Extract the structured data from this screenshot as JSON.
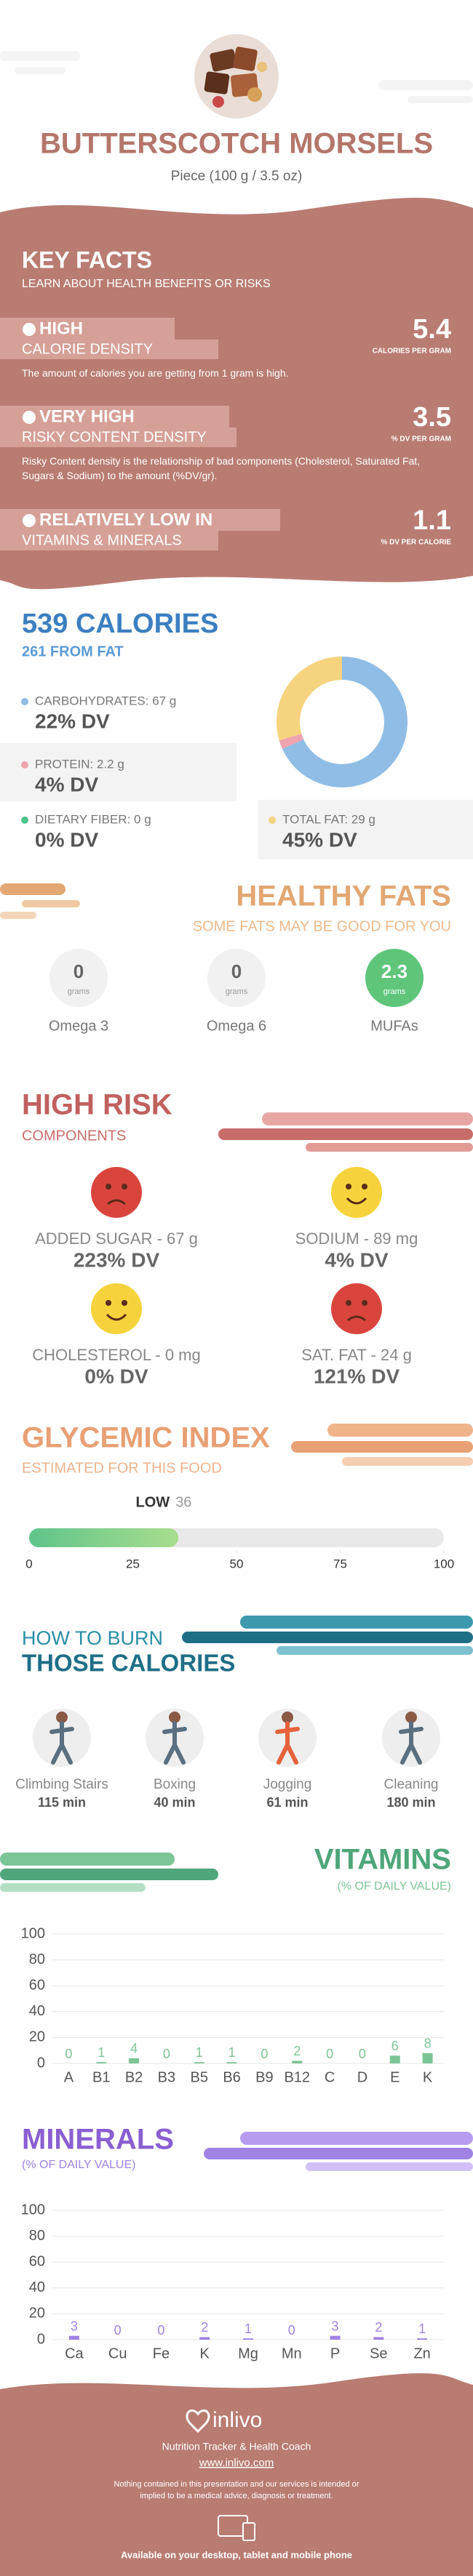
{
  "header": {
    "title": "BUTTERSCOTCH MORSELS",
    "subtitle": "Piece (100 g / 3.5 oz)"
  },
  "key_facts": {
    "title": "KEY FACTS",
    "subtitle": "LEARN ABOUT HEALTH BENEFITS OR RISKS",
    "items": [
      {
        "level": "HIGH",
        "name": "CALORIE DENSITY",
        "value": 5.4,
        "unit": "CALORIES PER GRAM",
        "description": "The amount of calories you are getting from 1 gram is high."
      },
      {
        "level": "VERY HIGH",
        "name": "RISKY CONTENT DENSITY",
        "value": 3.5,
        "unit": "% DV PER GRAM",
        "description": "Risky Content density is the relationship of bad components (Cholesterol, Saturated Fat, Sugars & Sodium) to the amount (%DV/gr)."
      },
      {
        "level": "RELATIVELY LOW  IN",
        "name": "VITAMINS & MINERALS",
        "value": 1.1,
        "unit": "% DV PER CALORIE"
      }
    ]
  },
  "calories": {
    "title": "539 CALORIES",
    "subtitle": "261 FROM FAT",
    "nutrients": [
      {
        "label": "CARBOHYDRATES: 67 g",
        "dv": "22% DV",
        "grams": 67,
        "color": "#8fbde6"
      },
      {
        "label": "PROTEIN: 2.2 g",
        "dv": "4% DV",
        "grams": 2.2,
        "color": "#f0a3b0"
      },
      {
        "label": "DIETARY FIBER: 0 g",
        "dv": "0% DV",
        "grams": 0,
        "color": "#4cc28d"
      },
      {
        "label": "TOTAL FAT: 29 g",
        "dv": "45% DV",
        "grams": 29,
        "color": "#f6d37e"
      }
    ]
  },
  "healthy_fats": {
    "title": "HEALTHY FATS",
    "subtitle": "SOME FATS MAY BE GOOD FOR YOU",
    "items": [
      {
        "name": "Omega 3",
        "value": "0",
        "unit": "grams"
      },
      {
        "name": "Omega 6",
        "value": "0",
        "unit": "grams"
      },
      {
        "name": "MUFAs",
        "value": "2.3",
        "unit": "grams"
      }
    ]
  },
  "high_risk": {
    "title": "HIGH RISK",
    "subtitle": "COMPONENTS",
    "items": [
      {
        "label": "ADDED SUGAR - 67 g",
        "dv": "223% DV",
        "face_color": "#d9453d"
      },
      {
        "label": "SODIUM - 89 mg",
        "dv": "4% DV",
        "face_color": "#f6d33c"
      },
      {
        "label": "CHOLESTEROL - 0 mg",
        "dv": "0% DV",
        "face_color": "#f6d33c"
      },
      {
        "label": "SAT. FAT - 24 g",
        "dv": "121% DV",
        "face_color": "#d9453d"
      }
    ]
  },
  "glycemic_index": {
    "title": "GLYCEMIC INDEX",
    "subtitle": "ESTIMATED FOR THIS FOOD",
    "level": "LOW",
    "value": 36,
    "xlim": [
      0,
      100
    ],
    "xticks": [
      0,
      25,
      50,
      75,
      100
    ]
  },
  "burn": {
    "title_line1": "HOW TO BURN",
    "title_line2": "THOSE CALORIES",
    "activities": [
      {
        "name": "Climbing Stairs",
        "time": "115 min"
      },
      {
        "name": "Boxing",
        "time": "40 min"
      },
      {
        "name": "Jogging",
        "time": "61 min"
      },
      {
        "name": "Cleaning",
        "time": "180 min"
      }
    ]
  },
  "vitamins": {
    "title": "VITAMINS",
    "subtitle": "(% OF DAILY VALUE)",
    "chart": {
      "type": "bar",
      "categories": [
        "A",
        "B1",
        "B2",
        "B3",
        "B5",
        "B6",
        "B9",
        "B12",
        "C",
        "D",
        "E",
        "K"
      ],
      "values": [
        0,
        1,
        4,
        0,
        1,
        1,
        0,
        2,
        0,
        0,
        6,
        8
      ],
      "color": "#7cc596",
      "ylim": [
        0,
        100
      ],
      "yticks": [
        0,
        20,
        40,
        60,
        80,
        100
      ],
      "grid": true
    }
  },
  "minerals": {
    "title": "MINERALS",
    "subtitle": "(% OF DAILY VALUE)",
    "chart": {
      "type": "bar",
      "categories": [
        "Ca",
        "Cu",
        "Fe",
        "K",
        "Mg",
        "Mn",
        "P",
        "Se",
        "Zn"
      ],
      "values": [
        3,
        0,
        0,
        2,
        1,
        0,
        3,
        2,
        1
      ],
      "color": "#9f82e3",
      "ylim": [
        0,
        100
      ],
      "yticks": [
        0,
        20,
        40,
        60,
        80,
        100
      ],
      "grid": true
    }
  },
  "footer": {
    "brand": "inlivo",
    "tagline": "Nutrition Tracker & Health Coach",
    "url": "www.inlivo.com",
    "disclaimer": "Nothing contained in this presentation and our services is intended or implied to be a medical advice, diagnosis or treatment.",
    "availability": "Available on your desktop, tablet and mobile phone"
  }
}
